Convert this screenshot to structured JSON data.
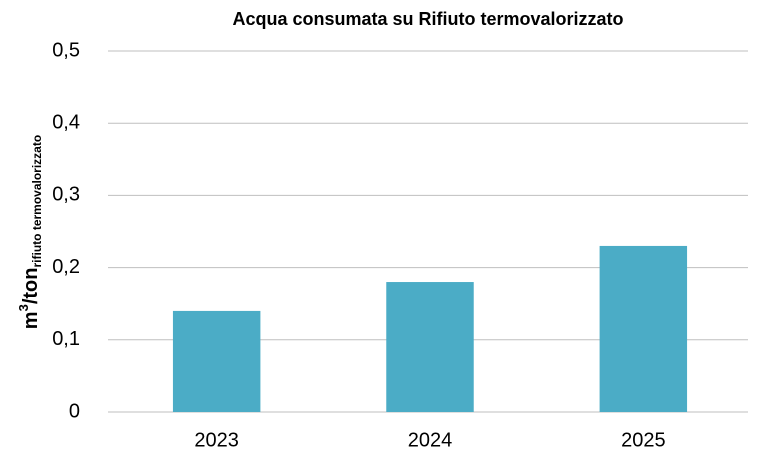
{
  "chart_data": {
    "type": "bar",
    "title": "Acqua consumata su Rifiuto termovalorizzato",
    "ylabel": {
      "base": "m",
      "sup": "3",
      "mid": "/ton",
      "sub": "rifiuto termovalorizzato"
    },
    "categories": [
      "2023",
      "2024",
      "2025"
    ],
    "values": [
      0.14,
      0.18,
      0.23
    ],
    "color": "#4bacc6",
    "ylim": [
      0,
      0.5
    ],
    "yticks": [
      0,
      {
        "value": 0.1,
        "label": "0,1"
      },
      {
        "value": 0.2,
        "label": "0,2"
      },
      {
        "value": 0.3,
        "label": "0,3"
      },
      {
        "value": 0.4,
        "label": "0,4"
      },
      {
        "value": 0.5,
        "label": "0,5"
      }
    ],
    "grid": true
  }
}
